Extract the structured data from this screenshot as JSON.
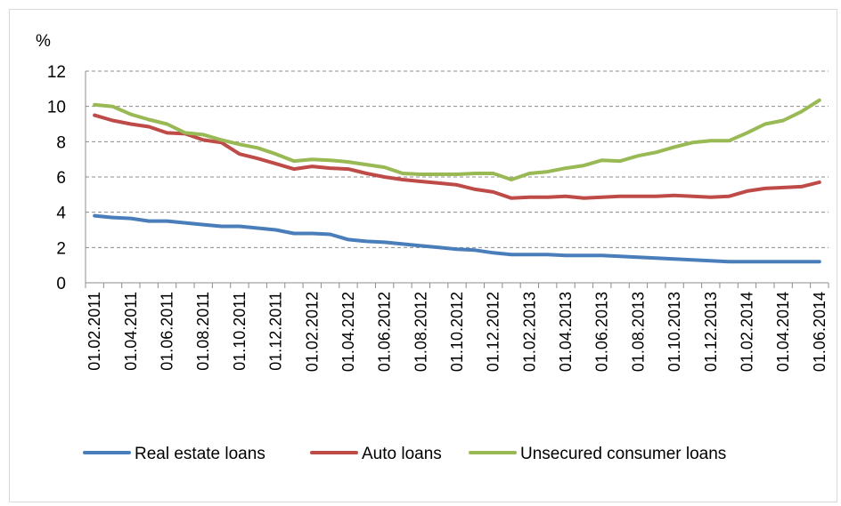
{
  "chart_data": {
    "type": "line",
    "title": "",
    "unit_label": "%",
    "xlabel": "",
    "ylabel": "",
    "ylim": [
      0,
      12
    ],
    "yticks": [
      "0",
      "2",
      "4",
      "6",
      "8",
      "10",
      "12"
    ],
    "grid": true,
    "legend_position": "bottom",
    "x": [
      "01.02.2011",
      "01.03.2011",
      "01.04.2011",
      "01.05.2011",
      "01.06.2011",
      "01.07.2011",
      "01.08.2011",
      "01.09.2011",
      "01.10.2011",
      "01.11.2011",
      "01.12.2011",
      "01.01.2012",
      "01.02.2012",
      "01.03.2012",
      "01.04.2012",
      "01.05.2012",
      "01.06.2012",
      "01.07.2012",
      "01.08.2012",
      "01.09.2012",
      "01.10.2012",
      "01.11.2012",
      "01.12.2012",
      "01.01.2013",
      "01.02.2013",
      "01.03.2013",
      "01.04.2013",
      "01.05.2013",
      "01.06.2013",
      "01.07.2013",
      "01.08.2013",
      "01.09.2013",
      "01.10.2013",
      "01.11.2013",
      "01.12.2013",
      "01.01.2014",
      "01.02.2014",
      "01.03.2014",
      "01.04.2014",
      "01.05.2014",
      "01.06.2014"
    ],
    "xtick_labels": [
      "01.02.2011",
      "01.04.2011",
      "01.06.2011",
      "01.08.2011",
      "01.10.2011",
      "01.12.2011",
      "01.02.2012",
      "01.04.2012",
      "01.06.2012",
      "01.08.2012",
      "01.10.2012",
      "01.12.2012",
      "01.02.2013",
      "01.04.2013",
      "01.06.2013",
      "01.08.2013",
      "01.10.2013",
      "01.12.2013",
      "01.02.2014",
      "01.04.2014",
      "01.06.2014"
    ],
    "series": [
      {
        "name": "Real estate loans",
        "color": "#4a7ebb",
        "values": [
          3.8,
          3.7,
          3.65,
          3.5,
          3.5,
          3.4,
          3.3,
          3.2,
          3.2,
          3.1,
          3.0,
          2.8,
          2.8,
          2.75,
          2.45,
          2.35,
          2.3,
          2.2,
          2.1,
          2.0,
          1.9,
          1.85,
          1.7,
          1.6,
          1.6,
          1.6,
          1.55,
          1.55,
          1.55,
          1.5,
          1.45,
          1.4,
          1.35,
          1.3,
          1.25,
          1.2,
          1.2,
          1.2,
          1.2,
          1.2,
          1.2
        ]
      },
      {
        "name": "Auto loans",
        "color": "#be4b48",
        "values": [
          9.5,
          9.2,
          9.0,
          8.85,
          8.5,
          8.45,
          8.1,
          7.95,
          7.3,
          7.05,
          6.75,
          6.45,
          6.6,
          6.5,
          6.45,
          6.2,
          6.0,
          5.85,
          5.75,
          5.65,
          5.55,
          5.3,
          5.15,
          4.8,
          4.85,
          4.85,
          4.9,
          4.8,
          4.85,
          4.9,
          4.9,
          4.9,
          4.95,
          4.9,
          4.85,
          4.9,
          5.2,
          5.35,
          5.4,
          5.45,
          5.7
        ]
      },
      {
        "name": "Unsecured consumer loans",
        "color": "#98b954",
        "values": [
          10.1,
          10.0,
          9.55,
          9.25,
          9.0,
          8.5,
          8.4,
          8.1,
          7.85,
          7.65,
          7.3,
          6.9,
          7.0,
          6.95,
          6.85,
          6.7,
          6.55,
          6.2,
          6.15,
          6.15,
          6.15,
          6.2,
          6.2,
          5.85,
          6.2,
          6.3,
          6.5,
          6.65,
          6.95,
          6.9,
          7.2,
          7.4,
          7.7,
          7.95,
          8.05,
          8.05,
          8.5,
          9.0,
          9.2,
          9.7,
          10.35
        ]
      }
    ]
  }
}
